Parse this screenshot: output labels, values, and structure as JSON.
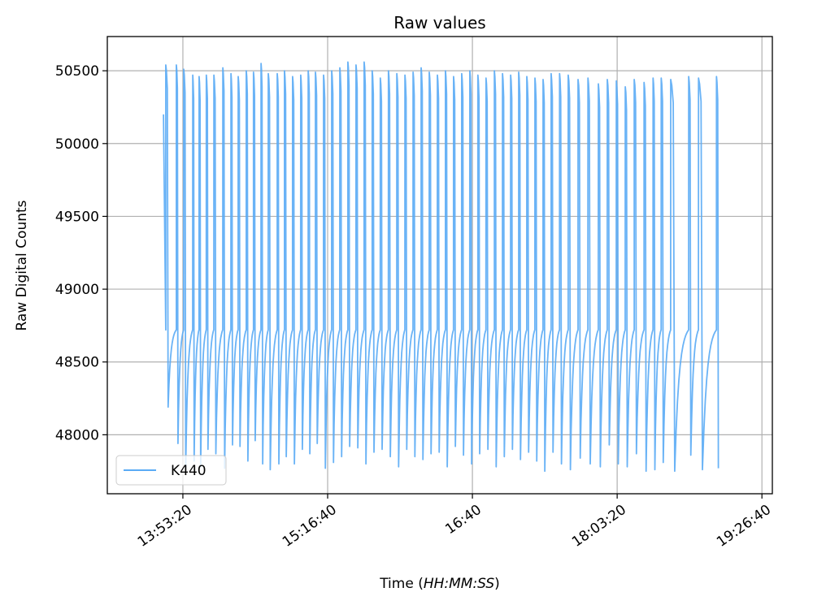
{
  "chart_data": {
    "type": "line",
    "title": "Raw values",
    "xlabel_prefix": "Time (",
    "xlabel_italic": "HH:MM:SS",
    "xlabel_suffix": ")",
    "ylabel": "Raw Digital Counts",
    "xlim": [
      47390,
      70360
    ],
    "ylim": [
      47595,
      50735
    ],
    "grid": true,
    "legend_placement": "lower-left",
    "x_ticks": [
      {
        "value": 50000,
        "label": "13:53:20"
      },
      {
        "value": 55000,
        "label": "15:16:40"
      },
      {
        "value": 60000,
        "label": "16:40"
      },
      {
        "value": 65000,
        "label": "18:03:20"
      },
      {
        "value": 70000,
        "label": "19:26:40"
      }
    ],
    "y_ticks": [
      {
        "value": 48000,
        "label": "48000"
      },
      {
        "value": 48500,
        "label": "48500"
      },
      {
        "value": 49000,
        "label": "49000"
      },
      {
        "value": 49500,
        "label": "49500"
      },
      {
        "value": 50000,
        "label": "50000"
      },
      {
        "value": 50500,
        "label": "50500"
      }
    ],
    "series": [
      {
        "name": "K440",
        "color": "#5aabf5",
        "start": {
          "t": 49330,
          "value": 50200
        },
        "plateau_value": 48720,
        "peak_times": [
          49410,
          49775,
          50030,
          50340,
          50560,
          50810,
          51070,
          51380,
          51660,
          51910,
          52190,
          52440,
          52700,
          52950,
          53260,
          53510,
          53790,
          54070,
          54330,
          54580,
          54860,
          55140,
          55420,
          55700,
          55980,
          56260,
          56540,
          56820,
          57100,
          57390,
          57670,
          57950,
          58230,
          58510,
          58790,
          59070,
          59350,
          59630,
          59910,
          60190,
          60470,
          60760,
          61040,
          61320,
          61600,
          61880,
          62160,
          62440,
          62720,
          63010,
          63310,
          63650,
          63990,
          64350,
          64660,
          64970,
          65280,
          65590,
          65930,
          66240,
          66520,
          66850,
          67470,
          67810,
          68430
        ],
        "peak_values": [
          50540,
          50540,
          50510,
          50470,
          50460,
          50470,
          50470,
          50520,
          50480,
          50460,
          50500,
          50490,
          50550,
          50480,
          50480,
          50500,
          50460,
          50470,
          50500,
          50490,
          50470,
          50500,
          50520,
          50560,
          50540,
          50560,
          50500,
          50450,
          50500,
          50480,
          50470,
          50490,
          50520,
          50490,
          50470,
          50500,
          50460,
          50480,
          50500,
          50470,
          50450,
          50500,
          50480,
          50470,
          50490,
          50460,
          50450,
          50440,
          50480,
          50480,
          50470,
          50440,
          50450,
          50410,
          50440,
          50430,
          50390,
          50440,
          50420,
          50450,
          50450,
          50440,
          50460,
          50450,
          50460
        ],
        "min_values": [
          48190,
          47940,
          47770,
          47820,
          47780,
          47900,
          47870,
          47770,
          47930,
          47920,
          47820,
          47960,
          47800,
          47760,
          47800,
          47850,
          47800,
          47900,
          47870,
          47940,
          47770,
          47810,
          47850,
          47920,
          47910,
          47800,
          47880,
          47900,
          47850,
          47780,
          47900,
          47850,
          47830,
          47870,
          47880,
          47780,
          47920,
          47860,
          47800,
          47870,
          47900,
          47780,
          47850,
          47900,
          47830,
          47880,
          47820,
          47750,
          47880,
          47800,
          47760,
          47840,
          47800,
          47780,
          47930,
          47800,
          47780,
          47870,
          47750,
          47760,
          47810,
          47750,
          47860,
          47760,
          47770
        ]
      }
    ]
  }
}
